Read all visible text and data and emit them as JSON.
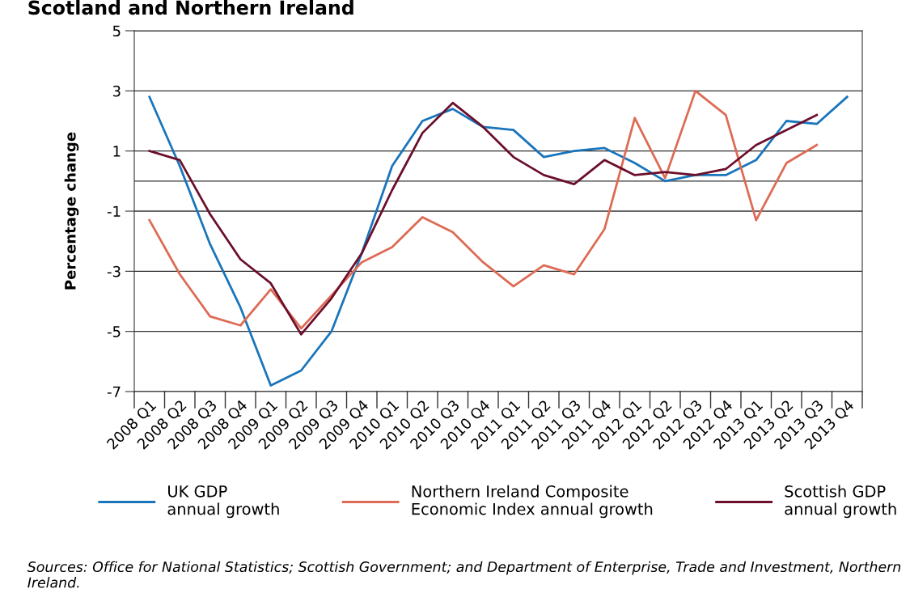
{
  "chart_data": {
    "type": "line",
    "title": "Scotland and Northern Ireland",
    "ylabel": "Percentage change",
    "categories": [
      "2008 Q1",
      "2008 Q2",
      "2008 Q3",
      "2008 Q4",
      "2009 Q1",
      "2009 Q2",
      "2009 Q3",
      "2009 Q4",
      "2010 Q1",
      "2010 Q2",
      "2010 Q3",
      "2010 Q4",
      "2011 Q1",
      "2011 Q2",
      "2011 Q3",
      "2011 Q4",
      "2012 Q1",
      "2012 Q2",
      "2012 Q3",
      "2012 Q4",
      "2013 Q1",
      "2013 Q2",
      "2013 Q3",
      "2013 Q4"
    ],
    "series": [
      {
        "name": "UK GDP\nannual growth",
        "color": "#1a75bb",
        "values": [
          2.8,
          0.5,
          -2.1,
          -4.2,
          -6.8,
          -6.3,
          -5.0,
          -2.4,
          0.5,
          2.0,
          2.4,
          1.8,
          1.7,
          0.8,
          1.0,
          1.1,
          0.6,
          0.0,
          0.2,
          0.2,
          0.7,
          2.0,
          1.9,
          2.8
        ]
      },
      {
        "name": "Northern Ireland Composite\nEconomic Index annual growth",
        "color": "#dd6b55",
        "values": [
          -1.3,
          -3.1,
          -4.5,
          -4.8,
          -3.6,
          -4.9,
          -3.8,
          -2.7,
          -2.2,
          -1.2,
          -1.7,
          -2.7,
          -3.5,
          -2.8,
          -3.1,
          -1.6,
          2.1,
          0.1,
          3.0,
          2.2,
          -1.3,
          0.6,
          1.2,
          null
        ]
      },
      {
        "name": "Scottish GDP\nannual growth",
        "color": "#6b0f2b",
        "values": [
          1.0,
          0.7,
          -1.1,
          -2.6,
          -3.4,
          -5.1,
          -3.9,
          -2.4,
          -0.3,
          1.6,
          2.6,
          1.8,
          0.8,
          0.2,
          -0.1,
          0.7,
          0.2,
          0.3,
          0.2,
          0.4,
          1.2,
          1.7,
          2.2,
          null
        ]
      }
    ],
    "ylim": [
      -7,
      5
    ],
    "yticks": [
      -7,
      -5,
      -3,
      -1,
      1,
      3,
      5
    ],
    "grid": "y",
    "ref_lines": [
      {
        "axis": "y",
        "value": 0,
        "label": null
      }
    ],
    "legend": "bottom",
    "marker": "none",
    "line_style": "solid",
    "annotations": [
      "Sources: Office for National Statistics; Scottish Government; and Department of Enterprise, Trade and Investment, Northern Ireland."
    ]
  }
}
